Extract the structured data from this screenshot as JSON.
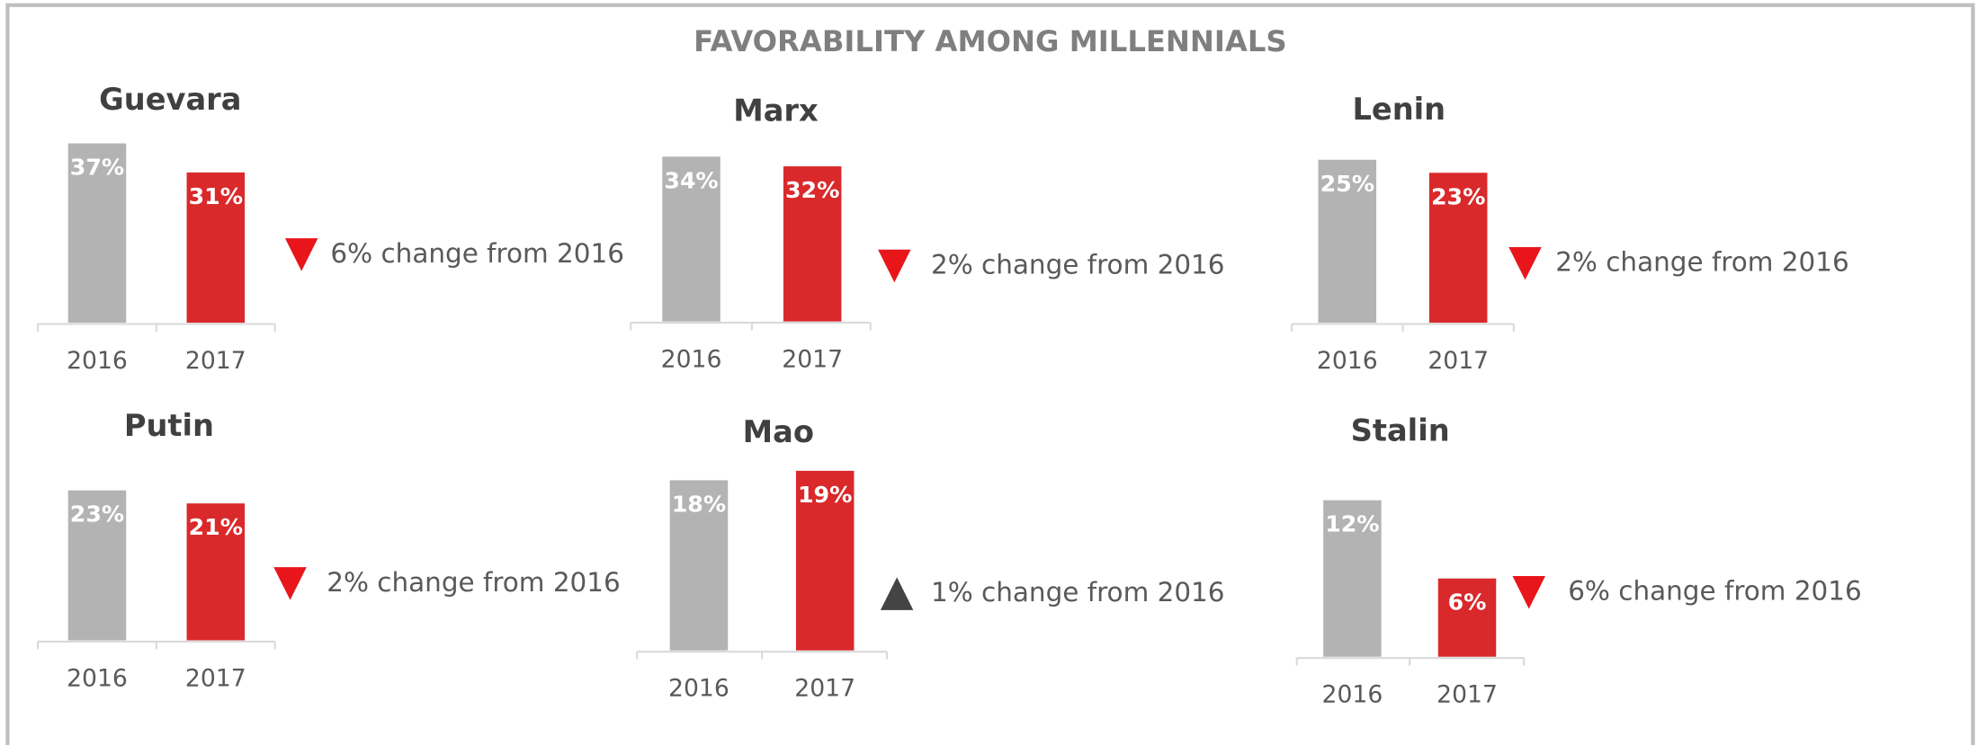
{
  "title": "FAVORABILITY AMONG MILLENNIALS",
  "chart_data": [
    {
      "type": "bar",
      "title": "Guevara",
      "categories": [
        "2016",
        "2017"
      ],
      "values": [
        37,
        31
      ],
      "value_labels": [
        "37%",
        "31%"
      ],
      "colors": [
        "#b3b3b3",
        "#d9292b"
      ],
      "ylim": [
        0,
        39
      ],
      "annotation": "6% change from 2016",
      "trend": "down",
      "trend_color": "#e8161b"
    },
    {
      "type": "bar",
      "title": "Marx",
      "categories": [
        "2016",
        "2017"
      ],
      "values": [
        34,
        32
      ],
      "value_labels": [
        "34%",
        "32%"
      ],
      "colors": [
        "#b3b3b3",
        "#d9292b"
      ],
      "ylim": [
        0,
        39
      ],
      "annotation": "2% change from 2016",
      "trend": "down",
      "trend_color": "#e8161b"
    },
    {
      "type": "bar",
      "title": "Lenin",
      "categories": [
        "2016",
        "2017"
      ],
      "values": [
        25,
        23
      ],
      "value_labels": [
        "25%",
        "23%"
      ],
      "colors": [
        "#b3b3b3",
        "#d9292b"
      ],
      "ylim": [
        0,
        29
      ],
      "annotation": "2% change from 2016",
      "trend": "down",
      "trend_color": "#e8161b"
    },
    {
      "type": "bar",
      "title": "Putin",
      "categories": [
        "2016",
        "2017"
      ],
      "values": [
        23,
        21
      ],
      "value_labels": [
        "23%",
        "21%"
      ],
      "colors": [
        "#b3b3b3",
        "#d9292b"
      ],
      "ylim": [
        0,
        29
      ],
      "annotation": "2% change from 2016",
      "trend": "down",
      "trend_color": "#e8161b"
    },
    {
      "type": "bar",
      "title": "Mao",
      "categories": [
        "2016",
        "2017"
      ],
      "values": [
        18,
        19
      ],
      "value_labels": [
        "18%",
        "19%"
      ],
      "colors": [
        "#b3b3b3",
        "#d9292b"
      ],
      "ylim": [
        0,
        20
      ],
      "annotation": "1% change from 2016",
      "trend": "up",
      "trend_color": "#444444"
    },
    {
      "type": "bar",
      "title": "Stalin",
      "categories": [
        "2016",
        "2017"
      ],
      "values": [
        12,
        6
      ],
      "value_labels": [
        "12%",
        "6%"
      ],
      "colors": [
        "#b3b3b3",
        "#d9292b"
      ],
      "ylim": [
        0,
        14.5
      ],
      "annotation": "6% change from 2016",
      "trend": "down",
      "trend_color": "#e8161b"
    }
  ]
}
